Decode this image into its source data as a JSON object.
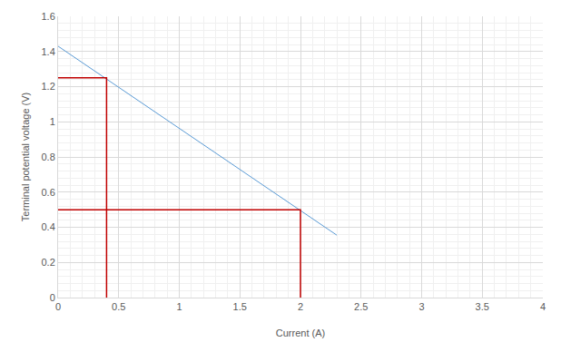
{
  "chart_data": {
    "type": "line",
    "x_label": "Current (A)",
    "y_label": "Terminal potential voltage (V)",
    "series": [
      {
        "color": "#5b9bd5",
        "line_style": "solid",
        "x": [
          0,
          2.3
        ],
        "values": [
          1.43,
          0.355
        ]
      },
      {
        "color": "#c00000",
        "line_style": "solid",
        "x": [
          0,
          0.4,
          0.4
        ],
        "values": [
          1.25,
          1.25,
          0
        ]
      },
      {
        "color": "#c00000",
        "line_style": "solid",
        "x": [
          0,
          2,
          2
        ],
        "values": [
          0.5,
          0.5,
          0
        ]
      }
    ],
    "xlim": [
      0,
      4
    ],
    "xticks": [
      0,
      0.5,
      1,
      1.5,
      2,
      2.5,
      3,
      3.5,
      4
    ],
    "ylim": [
      0,
      1.6
    ],
    "yticks": [
      0,
      0.2,
      0.4,
      0.6,
      0.8,
      1,
      1.2,
      1.4,
      1.6
    ],
    "grid": true
  }
}
